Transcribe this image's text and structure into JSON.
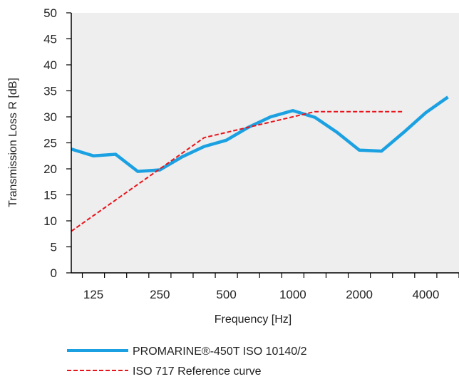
{
  "chart_data": {
    "type": "line",
    "title": "",
    "xlabel": "Frequency [Hz]",
    "ylabel": "Transmission Loss R [dB]",
    "ylim": [
      0,
      50
    ],
    "yticks": [
      0,
      5,
      10,
      15,
      20,
      25,
      30,
      35,
      40,
      45,
      50
    ],
    "x": [
      100,
      125,
      160,
      200,
      250,
      315,
      400,
      500,
      630,
      800,
      1000,
      1250,
      1600,
      2000,
      2500,
      3150,
      4000,
      5000
    ],
    "xtick_labels": [
      "125",
      "250",
      "500",
      "1000",
      "2000",
      "4000"
    ],
    "xtick_label_values": [
      125,
      250,
      500,
      1000,
      2000,
      4000
    ],
    "grid": false,
    "legend_position": "bottom",
    "plot_background": "#eeeeee",
    "series": [
      {
        "name": "PROMARINE®-450T ISO 10140/2",
        "color": "#1ba1e2",
        "style": "solid",
        "values": [
          23.8,
          22.5,
          22.8,
          19.5,
          19.8,
          22.3,
          24.3,
          25.5,
          28.0,
          30.0,
          31.2,
          29.9,
          27.0,
          23.6,
          23.4,
          27.0,
          30.8,
          33.8
        ]
      },
      {
        "name": "ISO 717 Reference curve",
        "color": "#e8141b",
        "style": "dashed",
        "x_values": [
          100,
          125,
          160,
          200,
          250,
          315,
          400,
          500,
          630,
          800,
          1000,
          1250,
          1600,
          2000,
          2500,
          3150
        ],
        "values": [
          8,
          11,
          14,
          17,
          20,
          23,
          26,
          27,
          28,
          29,
          30,
          31,
          31,
          31,
          31,
          31
        ]
      }
    ]
  }
}
